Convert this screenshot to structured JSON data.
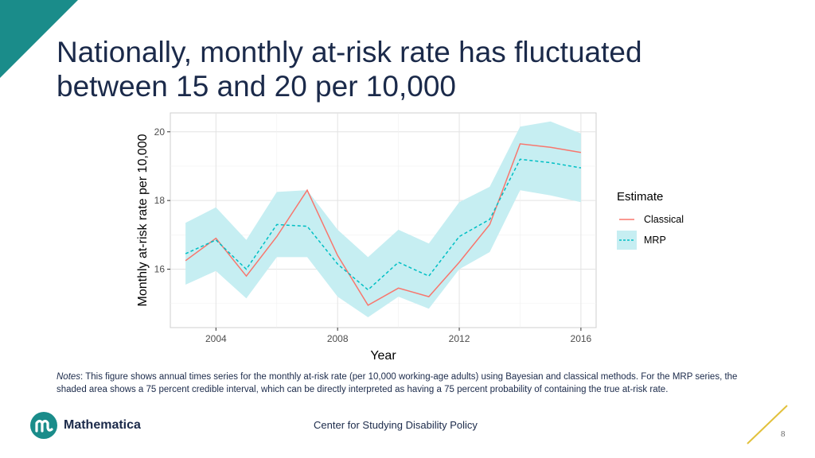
{
  "slide": {
    "title_line1": "Nationally, monthly at-risk rate has fluctuated",
    "title_line2": "between 15 and 20 per 10,000",
    "notes_label": "Notes",
    "notes_text": ": This figure shows annual times series for the monthly at-risk rate (per 10,000 working-age adults) using Bayesian and classical methods. For the MRP series, the shaded area shows a 75 percent credible interval, which can be directly interpreted as having a 75 percent probability of containing the true at-risk rate.",
    "logo_text": "Mathematica",
    "footer_center": "Center for Studying Disability Policy",
    "page_number": "8",
    "accent_color": "#1a8c8a",
    "text_color": "#1b2a4a"
  },
  "chart_data": {
    "type": "line",
    "xlabel": "Year",
    "ylabel": "Monthly at-risk rate per 10,000",
    "x": [
      2003,
      2004,
      2005,
      2006,
      2007,
      2008,
      2009,
      2010,
      2011,
      2012,
      2013,
      2014,
      2015,
      2016
    ],
    "xlim": [
      2002.5,
      2016.5
    ],
    "ylim": [
      14.3,
      20.55
    ],
    "xticks": [
      "2004",
      "2008",
      "2012",
      "2016"
    ],
    "yticks": [
      "16",
      "18",
      "20"
    ],
    "grid": true,
    "legend_title": "Estimate",
    "legend_position": "right",
    "series": [
      {
        "name": "Classical",
        "color": "#f8766d",
        "dash": "solid",
        "values": [
          16.25,
          16.9,
          15.8,
          16.95,
          18.3,
          16.4,
          14.95,
          15.45,
          15.2,
          16.2,
          17.3,
          19.65,
          19.55,
          19.4
        ]
      },
      {
        "name": "MRP",
        "color": "#00bfc4",
        "dash": "dashed",
        "values": [
          16.45,
          16.85,
          16.0,
          17.3,
          17.25,
          16.15,
          15.4,
          16.2,
          15.8,
          16.95,
          17.45,
          19.2,
          19.1,
          18.95
        ],
        "band_lower": [
          15.55,
          15.95,
          15.15,
          16.35,
          16.35,
          15.2,
          14.6,
          15.2,
          14.85,
          16.0,
          16.5,
          18.3,
          18.15,
          17.95
        ],
        "band_upper": [
          17.35,
          17.8,
          16.85,
          18.25,
          18.3,
          17.15,
          16.35,
          17.15,
          16.75,
          17.95,
          18.4,
          20.15,
          20.3,
          19.95
        ],
        "band_color": "#c6eef2"
      }
    ]
  }
}
